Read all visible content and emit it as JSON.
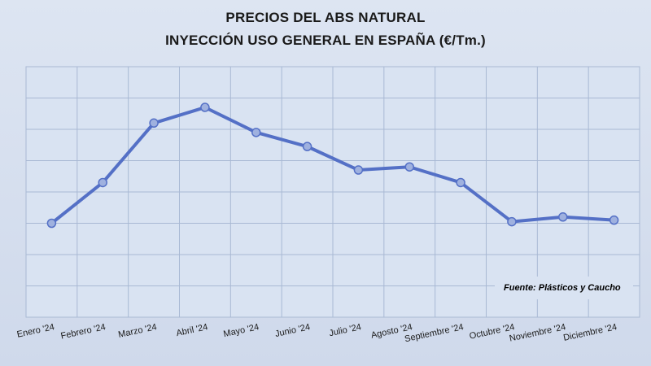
{
  "chart_data": {
    "type": "line",
    "title": "PRECIOS DEL ABS NATURAL",
    "subtitle": "INYECCIÓN USO GENERAL EN ESPAÑA (€/Tm.)",
    "categories": [
      "Enero '24",
      "Febrero '24",
      "Marzo '24",
      "Abril '24",
      "Mayo '24",
      "Junio '24",
      "Julio '24",
      "Agosto '24",
      "Septiembre '24",
      "Octubre '24",
      "Noviembre '24",
      "Diciembre '24"
    ],
    "series": [
      {
        "values": [
          3.0,
          4.3,
          6.2,
          6.7,
          5.9,
          5.45,
          4.7,
          4.8,
          4.3,
          3.05,
          3.2,
          3.1
        ],
        "color": "#5470c6"
      }
    ],
    "ylim": [
      0,
      8
    ],
    "y_ticks_labeled": false,
    "grid": true,
    "annotation": "Fuente: Plásticos y Caucho"
  }
}
